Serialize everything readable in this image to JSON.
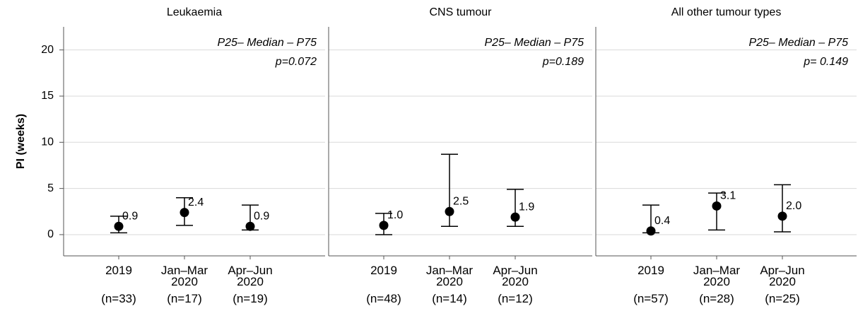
{
  "chart_data": [
    {
      "type": "errorbar",
      "title": "Leukaemia",
      "ylabel": "PI (weeks)",
      "annotation": "P25– Median – P75",
      "p_value": "p=0.072",
      "categories": [
        "2019",
        "Jan–Mar 2020",
        "Apr–Jun 2020"
      ],
      "n_labels": [
        "(n=33)",
        "(n=17)",
        "(n=19)"
      ],
      "values": [
        0.9,
        2.4,
        0.9
      ],
      "value_labels": [
        "0.9",
        "2.4",
        "0.9"
      ],
      "p25": [
        0.2,
        1.0,
        0.5
      ],
      "p75": [
        2.0,
        4.0,
        3.2
      ],
      "color": "#000000",
      "ylim": [
        -2.3,
        22.5
      ],
      "yticks": [
        0,
        5,
        10,
        15,
        20
      ],
      "grid": true
    },
    {
      "type": "errorbar",
      "title": "CNS tumour",
      "annotation": "P25– Median – P75",
      "p_value": "p=0.189",
      "categories": [
        "2019",
        "Jan–Mar 2020",
        "Apr–Jun 2020"
      ],
      "n_labels": [
        "(n=48)",
        "(n=14)",
        "(n=12)"
      ],
      "values": [
        1.0,
        2.5,
        1.9
      ],
      "value_labels": [
        "1.0",
        "2.5",
        "1.9"
      ],
      "p25": [
        0.0,
        0.9,
        0.9
      ],
      "p75": [
        2.3,
        8.7,
        4.9
      ],
      "color": "#000000",
      "ylim": [
        -2.3,
        22.5
      ],
      "yticks": [
        0,
        5,
        10,
        15,
        20
      ],
      "grid": true
    },
    {
      "type": "errorbar",
      "title": "All other tumour types",
      "annotation": "P25– Median – P75",
      "p_value": "p= 0.149",
      "categories": [
        "2019",
        "Jan–Mar 2020",
        "Apr–Jun 2020"
      ],
      "n_labels": [
        "(n=57)",
        "(n=28)",
        "(n=25)"
      ],
      "values": [
        0.4,
        3.1,
        2.0
      ],
      "value_labels": [
        "0.4",
        "3.1",
        "2.0"
      ],
      "p25": [
        0.2,
        0.5,
        0.3
      ],
      "p75": [
        3.2,
        4.5,
        5.4
      ],
      "color": "#000000",
      "ylim": [
        -2.3,
        22.5
      ],
      "yticks": [
        0,
        5,
        10,
        15,
        20
      ],
      "grid": true
    }
  ]
}
